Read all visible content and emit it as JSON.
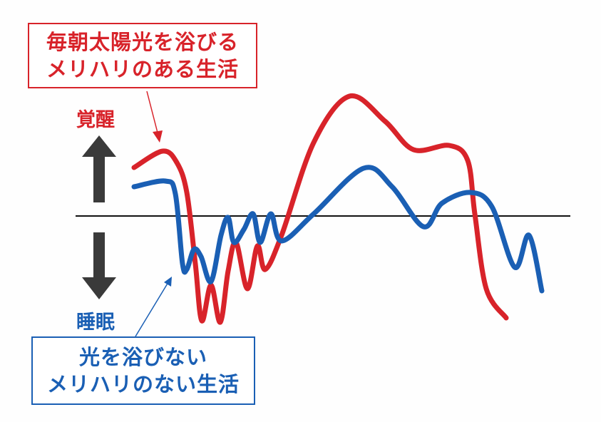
{
  "labels": {
    "awake": "覚醒",
    "sleep": "睡眠"
  },
  "callouts": {
    "red": {
      "line1": "毎朝太陽光を浴びる",
      "line2": "メリハリのある生活"
    },
    "blue": {
      "line1": "光を浴びない",
      "line2": "メリハリのない生活"
    }
  },
  "colors": {
    "red": "#d8232a",
    "blue": "#1a5fb4",
    "arrow": "#3a3a3a"
  }
}
